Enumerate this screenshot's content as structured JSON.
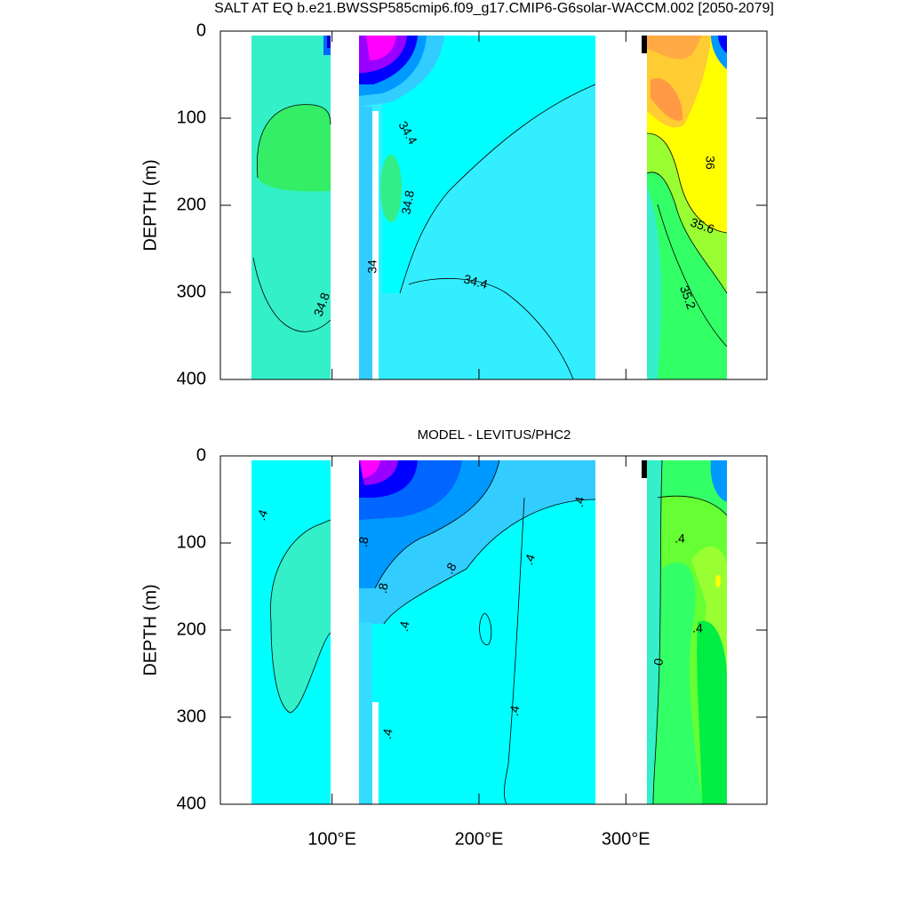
{
  "chart_data": [
    {
      "type": "contour",
      "title": "SALT AT EQ b.e21.BWSSP585cmip6.f09_g17.CMIP6-G6solar-WACCM.002 [2050-2079]",
      "ylabel": "DEPTH (m)",
      "xlim": [
        24,
        396
      ],
      "ylim": [
        400,
        0
      ],
      "xticks": [
        100,
        200,
        300
      ],
      "xticklabels": false,
      "yticks": [
        0,
        100,
        200,
        300,
        400
      ],
      "annotations": [
        "34.4",
        "34.8",
        "34",
        "34.4",
        "34.8",
        "36",
        "35.6",
        "35.2"
      ]
    },
    {
      "type": "contour",
      "title": "MODEL - LEVITUS/PHC2",
      "ylabel": "DEPTH (m)",
      "xlim": [
        24,
        396
      ],
      "ylim": [
        400,
        0
      ],
      "xticks": [
        {
          "value": 100,
          "label": "100°E"
        },
        {
          "value": 200,
          "label": "200°E"
        },
        {
          "value": 300,
          "label": "300°E"
        }
      ],
      "xticklabels": true,
      "yticks": [
        0,
        100,
        200,
        300,
        400
      ],
      "annotations": [
        ".4",
        ".8",
        ".8",
        ".4",
        ".4",
        ".8",
        ".4",
        ".4",
        ".4",
        ".4",
        ".4",
        "0"
      ]
    }
  ]
}
